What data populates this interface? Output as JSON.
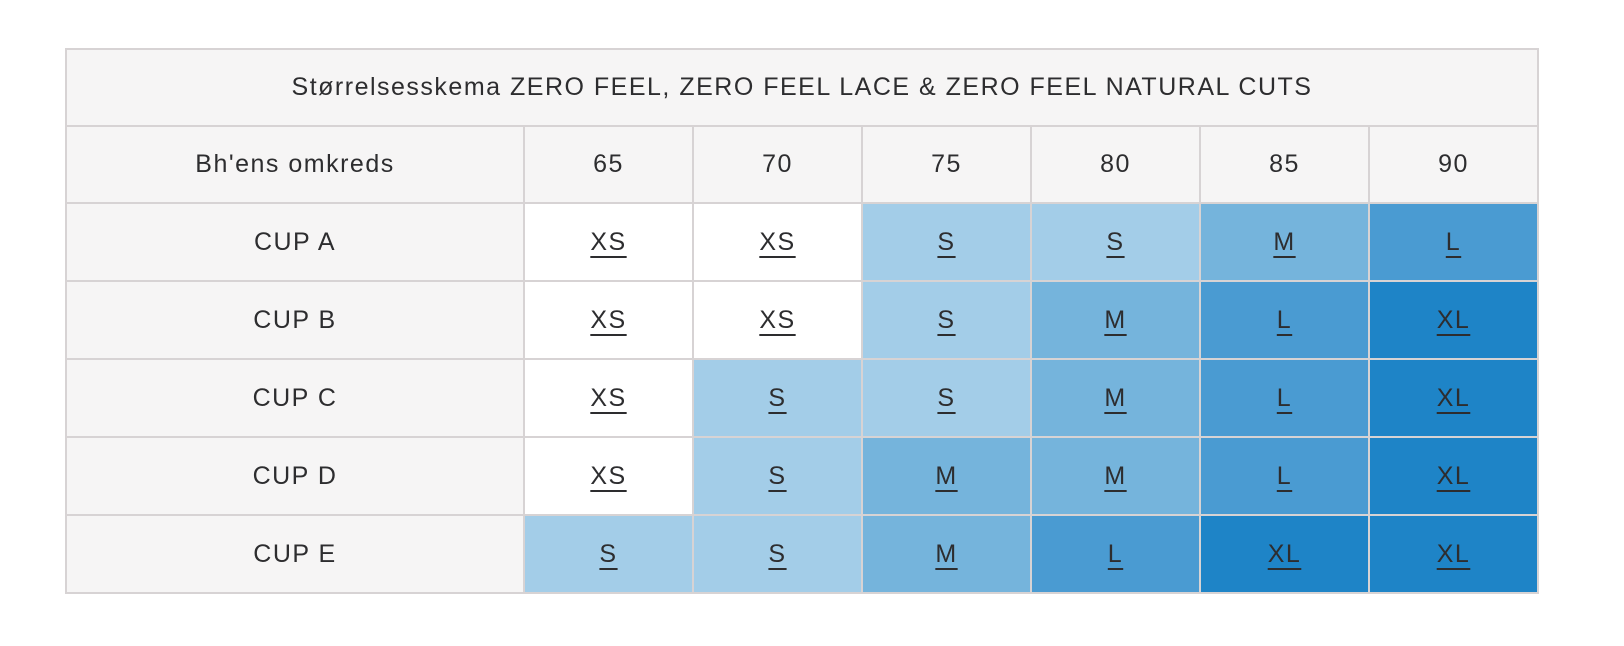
{
  "page": {
    "background": "#ffffff"
  },
  "table": {
    "title": "Størrelsesskema ZERO FEEL, ZERO FEEL LACE & ZERO FEEL NATURAL CUTS",
    "header": {
      "label": "Bh'ens omkreds",
      "columns": [
        "65",
        "70",
        "75",
        "80",
        "85",
        "90"
      ]
    },
    "rows": [
      {
        "label": "CUP A",
        "sizes": [
          "XS",
          "XS",
          "S",
          "S",
          "M",
          "L"
        ]
      },
      {
        "label": "CUP B",
        "sizes": [
          "XS",
          "XS",
          "S",
          "M",
          "L",
          "XL"
        ]
      },
      {
        "label": "CUP C",
        "sizes": [
          "XS",
          "S",
          "S",
          "M",
          "L",
          "XL"
        ]
      },
      {
        "label": "CUP D",
        "sizes": [
          "XS",
          "S",
          "M",
          "M",
          "L",
          "XL"
        ]
      },
      {
        "label": "CUP E",
        "sizes": [
          "S",
          "S",
          "M",
          "L",
          "XL",
          "XL"
        ]
      }
    ],
    "size_colors": {
      "XS": "#ffffff",
      "S": "#a3cde8",
      "M": "#75b4dc",
      "L": "#4a9bd2",
      "XL": "#1e84c7"
    },
    "style_colors": {
      "header_bg": "#f6f5f5",
      "border": "#d7d3d4",
      "text": "#2d2d2f"
    }
  }
}
